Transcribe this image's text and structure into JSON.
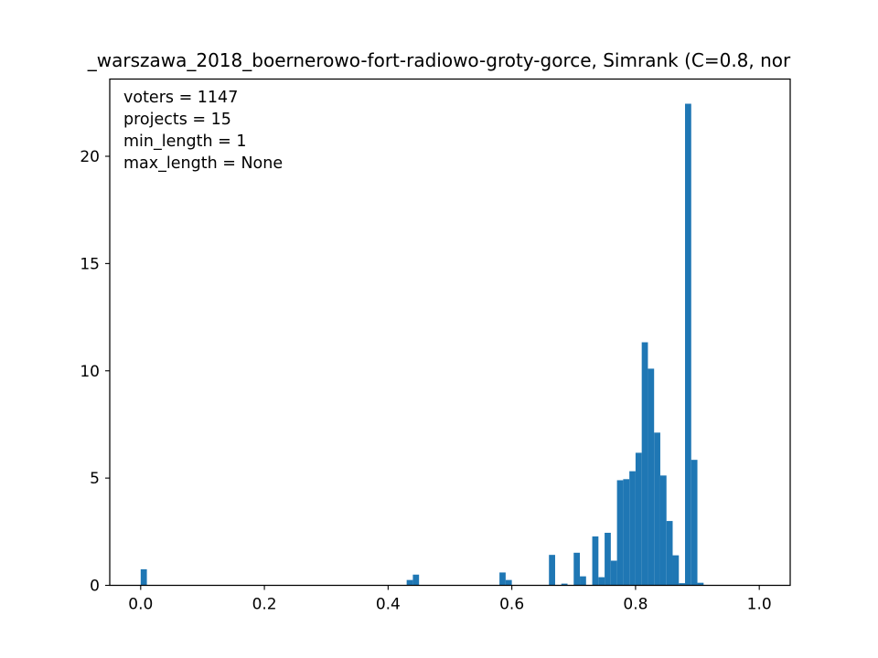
{
  "chart_data": {
    "type": "bar",
    "title": "_warszawa_2018_boernerowo-fort-radiowo-groty-gorce, Simrank (C=0.8, nor",
    "xlabel": "",
    "ylabel": "",
    "xlim": [
      -0.05,
      1.05
    ],
    "ylim": [
      0,
      23.6
    ],
    "x_ticks": [
      0.0,
      0.2,
      0.4,
      0.6,
      0.8,
      1.0
    ],
    "x_tick_labels": [
      "0.0",
      "0.2",
      "0.4",
      "0.6",
      "0.8",
      "1.0"
    ],
    "y_ticks": [
      0,
      5,
      10,
      15,
      20
    ],
    "y_tick_labels": [
      "0",
      "5",
      "10",
      "15",
      "20"
    ],
    "bin_width": 0.01,
    "color": "#1f77b4",
    "annotations": [
      "voters = 1147",
      "projects = 15",
      "min_length = 1",
      "max_length = None"
    ],
    "bins": [
      {
        "x": 0.0,
        "height": 0.75
      },
      {
        "x": 0.43,
        "height": 0.25
      },
      {
        "x": 0.44,
        "height": 0.5
      },
      {
        "x": 0.58,
        "height": 0.6
      },
      {
        "x": 0.59,
        "height": 0.25
      },
      {
        "x": 0.66,
        "height": 1.42
      },
      {
        "x": 0.68,
        "height": 0.08
      },
      {
        "x": 0.7,
        "height": 1.52
      },
      {
        "x": 0.71,
        "height": 0.42
      },
      {
        "x": 0.73,
        "height": 2.28
      },
      {
        "x": 0.74,
        "height": 0.38
      },
      {
        "x": 0.75,
        "height": 2.45
      },
      {
        "x": 0.76,
        "height": 1.15
      },
      {
        "x": 0.77,
        "height": 4.9
      },
      {
        "x": 0.78,
        "height": 4.95
      },
      {
        "x": 0.79,
        "height": 5.32
      },
      {
        "x": 0.8,
        "height": 6.18
      },
      {
        "x": 0.81,
        "height": 11.33
      },
      {
        "x": 0.82,
        "height": 10.1
      },
      {
        "x": 0.83,
        "height": 7.12
      },
      {
        "x": 0.84,
        "height": 5.12
      },
      {
        "x": 0.85,
        "height": 3.0
      },
      {
        "x": 0.86,
        "height": 1.4
      },
      {
        "x": 0.87,
        "height": 0.1
      },
      {
        "x": 0.88,
        "height": 22.45
      },
      {
        "x": 0.89,
        "height": 5.85
      },
      {
        "x": 0.9,
        "height": 0.12
      }
    ]
  }
}
